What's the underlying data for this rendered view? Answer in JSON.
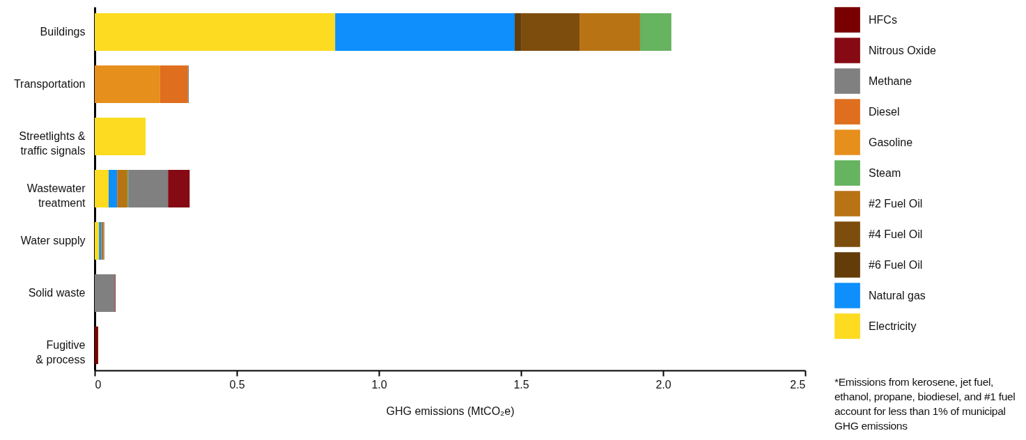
{
  "chart_data": {
    "type": "bar",
    "orientation": "horizontal",
    "stacked": true,
    "xlabel": "GHG emissions (MtCO₂e)",
    "categories": [
      "Buildings",
      "Transportation",
      "Streetlights & traffic signals",
      "Wastewater treatment",
      "Water supply",
      "Solid waste",
      "Fugitive & process"
    ],
    "series": [
      {
        "name": "Electricity",
        "color": "#fcdb21",
        "values": [
          0.846,
          0,
          0.179,
          0.049,
          0.015,
          0,
          0
        ]
      },
      {
        "name": "Natural gas",
        "color": "#0e8ffc",
        "values": [
          0.632,
          0,
          0,
          0.03,
          0.008,
          0,
          0
        ]
      },
      {
        "name": "#6 Fuel Oil",
        "color": "#633c0a",
        "values": [
          0.024,
          0,
          0,
          0,
          0,
          0,
          0
        ]
      },
      {
        "name": "#4 Fuel Oil",
        "color": "#7d4d0e",
        "values": [
          0.204,
          0,
          0,
          0,
          0,
          0,
          0
        ]
      },
      {
        "name": "#2 Fuel Oil",
        "color": "#b87314",
        "values": [
          0.213,
          0,
          0,
          0.036,
          0.008,
          0,
          0
        ]
      },
      {
        "name": "Steam",
        "color": "#66b360",
        "values": [
          0.11,
          0,
          0,
          0.003,
          0,
          0,
          0
        ]
      },
      {
        "name": "Gasoline",
        "color": "#e68f1c",
        "values": [
          0,
          0.23,
          0,
          0,
          0,
          0,
          0
        ]
      },
      {
        "name": "Diesel",
        "color": "#df6e1e",
        "values": [
          0,
          0.098,
          0,
          0,
          0,
          0,
          0
        ]
      },
      {
        "name": "Methane",
        "color": "#808080",
        "values": [
          0,
          0.003,
          0,
          0.14,
          0.003,
          0.071,
          0
        ]
      },
      {
        "name": "Nitrous Oxide",
        "color": "#860a14",
        "values": [
          0,
          0,
          0,
          0.076,
          0,
          0.002,
          0
        ]
      },
      {
        "name": "HFCs",
        "color": "#780000",
        "values": [
          0,
          0,
          0,
          0,
          0,
          0,
          0.012
        ]
      }
    ],
    "xlim": [
      0,
      2.5
    ],
    "xticks": [
      {
        "value": 0,
        "label": "0"
      },
      {
        "value": 0.5,
        "label": "0.5"
      },
      {
        "value": 1,
        "label": "1.0"
      },
      {
        "value": 1.5,
        "label": "1.5"
      },
      {
        "value": 2,
        "label": "2.0"
      },
      {
        "value": 2.5,
        "label": "2.5"
      }
    ],
    "grid": false,
    "legend": "right",
    "annotations": [
      "*Emissions from kerosene, jet fuel, ethanol, propane, biodiesel, and #1 fuel account for less than 1% of municipal GHG emissions"
    ]
  }
}
